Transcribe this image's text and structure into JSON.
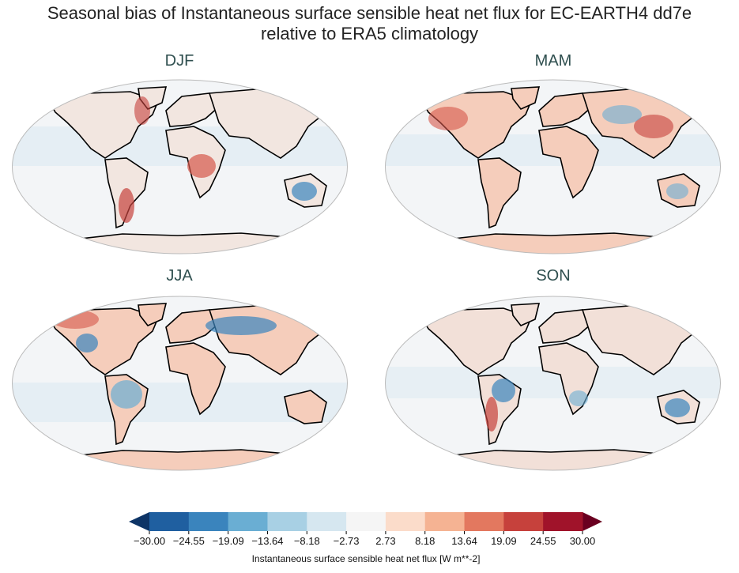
{
  "title_line1": "Seasonal bias of Instantaneous surface sensible heat net flux for EC-EARTH4 dd7e",
  "title_line2": "relative to ERA5 climatology",
  "panels": [
    {
      "label": "DJF"
    },
    {
      "label": "MAM"
    },
    {
      "label": "JJA"
    },
    {
      "label": "SON"
    }
  ],
  "colorbar": {
    "label": "Instantaneous surface sensible heat net flux [W m**-2]",
    "ticks": [
      "−30.00",
      "−24.55",
      "−19.09",
      "−13.64",
      "−8.18",
      "−2.73",
      "2.73",
      "8.18",
      "13.64",
      "19.09",
      "24.55",
      "30.00"
    ],
    "colors": [
      "#1f5fa0",
      "#3a84bd",
      "#6aaed3",
      "#a8d0e4",
      "#d6e7f0",
      "#f5f5f5",
      "#fbdcca",
      "#f5b393",
      "#e3785f",
      "#c6413c",
      "#a0132a"
    ],
    "under_color": "#0d3466",
    "over_color": "#6a0020"
  }
}
